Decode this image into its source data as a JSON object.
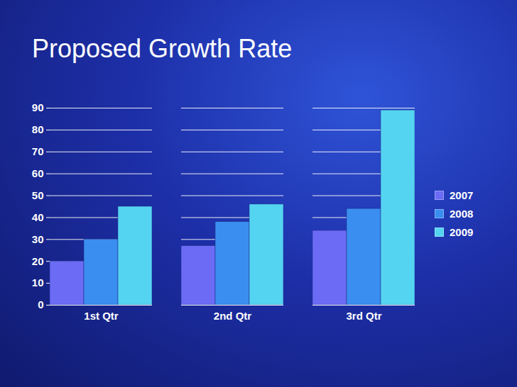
{
  "chart_data": {
    "type": "bar",
    "title": "Proposed Growth Rate",
    "categories": [
      "1st Qtr",
      "2nd Qtr",
      "3rd Qtr"
    ],
    "series": [
      {
        "name": "2007",
        "color": "#6b6bf5",
        "values": [
          20,
          27,
          34
        ]
      },
      {
        "name": "2008",
        "color": "#3a8ef0",
        "values": [
          30,
          38,
          44
        ]
      },
      {
        "name": "2009",
        "color": "#55d4f2",
        "values": [
          45,
          46,
          89
        ]
      }
    ],
    "ylim": [
      0,
      90
    ],
    "yticks": [
      0,
      10,
      20,
      30,
      40,
      50,
      60,
      70,
      80,
      90
    ],
    "grid": true,
    "legend": "right"
  }
}
